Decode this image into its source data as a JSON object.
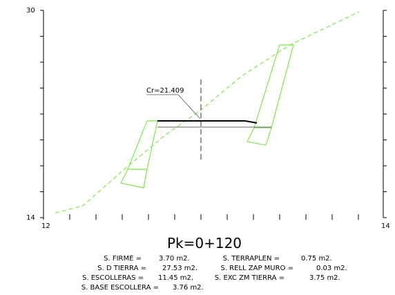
{
  "axis": {
    "left_top": "30",
    "left_bottom": "14",
    "right_bottom": "14",
    "bottom_left": "12"
  },
  "annotation": "Cr=21.409",
  "section": {
    "title": "Pk=0+120",
    "areas": [
      {
        "label": "S. FIRME =",
        "value": "3.70 m2."
      },
      {
        "label": "S. TERRAPLEN =",
        "value": "0.75 m2."
      },
      {
        "label": "S. D TIERRA =",
        "value": "27.53 m2."
      },
      {
        "label": "S. RELL ZAP MURO =",
        "value": "0.03 m2."
      },
      {
        "label": "S. ESCOLLERAS =",
        "value": "11.45 m2."
      },
      {
        "label": "S. EXC ZM TIERRA =",
        "value": "3.75 m2."
      },
      {
        "label": "S. BASE ESCOLLERA =",
        "value": "3.76 m2."
      }
    ]
  }
}
